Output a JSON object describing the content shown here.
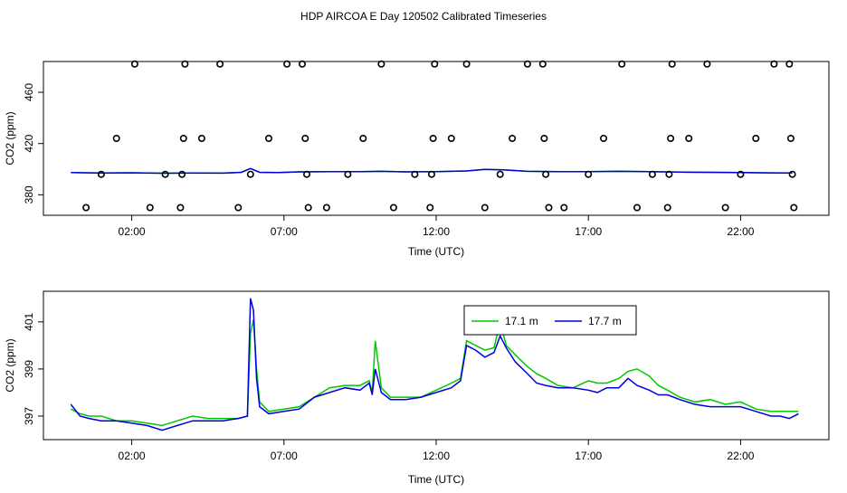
{
  "title": "HDP AIRCOA E  Day 120502  Calibrated Timeseries",
  "colors": {
    "green": "#00c800",
    "blue": "#0000dd",
    "frame": "#000000"
  },
  "chart_data": [
    {
      "type": "scatter",
      "xlabel": "Time (UTC)",
      "ylabel": "CO2 (ppm)",
      "xlim": [
        -0.9,
        24.9
      ],
      "ylim": [
        364,
        484
      ],
      "x_ticks": [
        2,
        7,
        12,
        17,
        22
      ],
      "x_tick_labels": [
        "02:00",
        "07:00",
        "12:00",
        "17:00",
        "22:00"
      ],
      "y_ticks": [
        380,
        420,
        460
      ],
      "y_tick_labels": [
        "380",
        "420",
        "460"
      ],
      "line": {
        "x": [
          0.0,
          1.0,
          2.0,
          3.0,
          4.0,
          5.0,
          5.6,
          5.9,
          6.2,
          6.8,
          7.5,
          8.5,
          9.5,
          10.2,
          11.0,
          12.0,
          13.0,
          13.6,
          14.2,
          15.0,
          16.0,
          17.0,
          18.0,
          19.0,
          20.0,
          21.0,
          22.0,
          23.0,
          23.7
        ],
        "y": [
          397.3,
          397.0,
          397.2,
          396.8,
          397.0,
          396.9,
          397.5,
          400.5,
          397.5,
          397.4,
          397.9,
          398.0,
          398.0,
          398.3,
          397.9,
          398.0,
          398.6,
          399.8,
          399.5,
          398.3,
          398.0,
          398.0,
          398.3,
          398.0,
          397.7,
          397.5,
          397.3,
          397.1,
          397.0
        ]
      },
      "circles": {
        "x": [
          0.5,
          1.0,
          1.5,
          2.1,
          2.6,
          3.1,
          3.6,
          3.65,
          3.7,
          3.75,
          4.3,
          4.9,
          5.5,
          5.9,
          6.5,
          7.1,
          7.6,
          7.7,
          7.75,
          7.8,
          8.4,
          9.1,
          9.6,
          10.2,
          10.6,
          11.3,
          11.8,
          11.85,
          11.9,
          11.95,
          12.5,
          13.0,
          13.6,
          14.1,
          14.5,
          15.0,
          15.5,
          15.55,
          15.6,
          15.7,
          16.2,
          17.0,
          17.5,
          18.1,
          18.6,
          19.1,
          19.6,
          19.65,
          19.7,
          19.75,
          20.3,
          20.9,
          21.5,
          22.0,
          22.5,
          23.1,
          23.6,
          23.65,
          23.7,
          23.75
        ],
        "y": [
          370,
          396,
          424,
          482,
          370,
          396,
          370,
          396,
          424,
          482,
          424,
          482,
          370,
          396,
          424,
          482,
          482,
          424,
          396,
          370,
          370,
          396,
          424,
          482,
          370,
          396,
          370,
          396,
          424,
          482,
          424,
          482,
          370,
          396,
          424,
          482,
          482,
          424,
          396,
          370,
          370,
          396,
          424,
          482,
          370,
          396,
          370,
          396,
          424,
          482,
          424,
          482,
          370,
          396,
          424,
          482,
          482,
          424,
          396,
          370
        ]
      }
    },
    {
      "type": "line",
      "xlabel": "Time (UTC)",
      "ylabel": "CO2 (ppm)",
      "xlim": [
        -0.9,
        24.9
      ],
      "ylim": [
        396.0,
        402.3
      ],
      "x_ticks": [
        2,
        7,
        12,
        17,
        22
      ],
      "x_tick_labels": [
        "02:00",
        "07:00",
        "12:00",
        "17:00",
        "22:00"
      ],
      "y_ticks": [
        397,
        399,
        401
      ],
      "y_tick_labels": [
        "397",
        "399",
        "401"
      ],
      "legend": {
        "position": "top-center",
        "entries": [
          {
            "name": "17.1 m",
            "color": "#00c800"
          },
          {
            "name": "17.7 m",
            "color": "#0000dd"
          }
        ]
      },
      "x": [
        0.0,
        0.3,
        0.6,
        1.0,
        1.5,
        2.0,
        2.5,
        3.0,
        3.5,
        4.0,
        4.5,
        5.0,
        5.5,
        5.8,
        5.9,
        6.0,
        6.1,
        6.2,
        6.5,
        7.0,
        7.5,
        8.0,
        8.5,
        9.0,
        9.5,
        9.8,
        9.9,
        10.0,
        10.2,
        10.5,
        11.0,
        11.5,
        12.0,
        12.5,
        12.8,
        13.0,
        13.3,
        13.6,
        13.9,
        14.1,
        14.3,
        14.6,
        15.0,
        15.3,
        15.6,
        16.0,
        16.5,
        17.0,
        17.3,
        17.6,
        18.0,
        18.3,
        18.6,
        19.0,
        19.3,
        19.6,
        20.0,
        20.5,
        21.0,
        21.5,
        22.0,
        22.5,
        23.0,
        23.3,
        23.6,
        23.9
      ],
      "series": [
        {
          "name": "17.1 m",
          "color": "#00c800",
          "y": [
            397.3,
            397.1,
            397.0,
            397.0,
            396.8,
            396.8,
            396.7,
            396.6,
            396.8,
            397.0,
            396.9,
            396.9,
            396.9,
            397.0,
            400.5,
            401.1,
            399.0,
            397.6,
            397.2,
            397.3,
            397.4,
            397.8,
            398.2,
            398.3,
            398.3,
            398.5,
            398.0,
            400.2,
            398.2,
            397.8,
            397.8,
            397.8,
            398.1,
            398.4,
            398.6,
            400.2,
            400.0,
            399.8,
            399.9,
            401.0,
            400.0,
            399.6,
            399.1,
            398.8,
            398.6,
            398.3,
            398.2,
            398.5,
            398.4,
            398.4,
            398.6,
            398.9,
            399.0,
            398.7,
            398.3,
            398.1,
            397.8,
            397.6,
            397.7,
            397.5,
            397.6,
            397.3,
            397.2,
            397.2,
            397.2,
            397.2
          ]
        },
        {
          "name": "17.7 m",
          "color": "#0000dd",
          "y": [
            397.5,
            397.0,
            396.9,
            396.8,
            396.8,
            396.7,
            396.6,
            396.4,
            396.6,
            396.8,
            396.8,
            396.8,
            396.9,
            397.0,
            402.0,
            401.5,
            398.6,
            397.4,
            397.1,
            397.2,
            397.3,
            397.8,
            398.0,
            398.2,
            398.1,
            398.4,
            397.9,
            399.0,
            398.0,
            397.7,
            397.7,
            397.8,
            398.0,
            398.2,
            398.5,
            400.0,
            399.8,
            399.5,
            399.7,
            400.4,
            399.9,
            399.3,
            398.8,
            398.4,
            398.3,
            398.2,
            398.2,
            398.1,
            398.0,
            398.2,
            398.2,
            398.6,
            398.3,
            398.1,
            397.9,
            397.9,
            397.7,
            397.5,
            397.4,
            397.4,
            397.4,
            397.2,
            397.0,
            397.0,
            396.9,
            397.1
          ]
        }
      ]
    }
  ]
}
